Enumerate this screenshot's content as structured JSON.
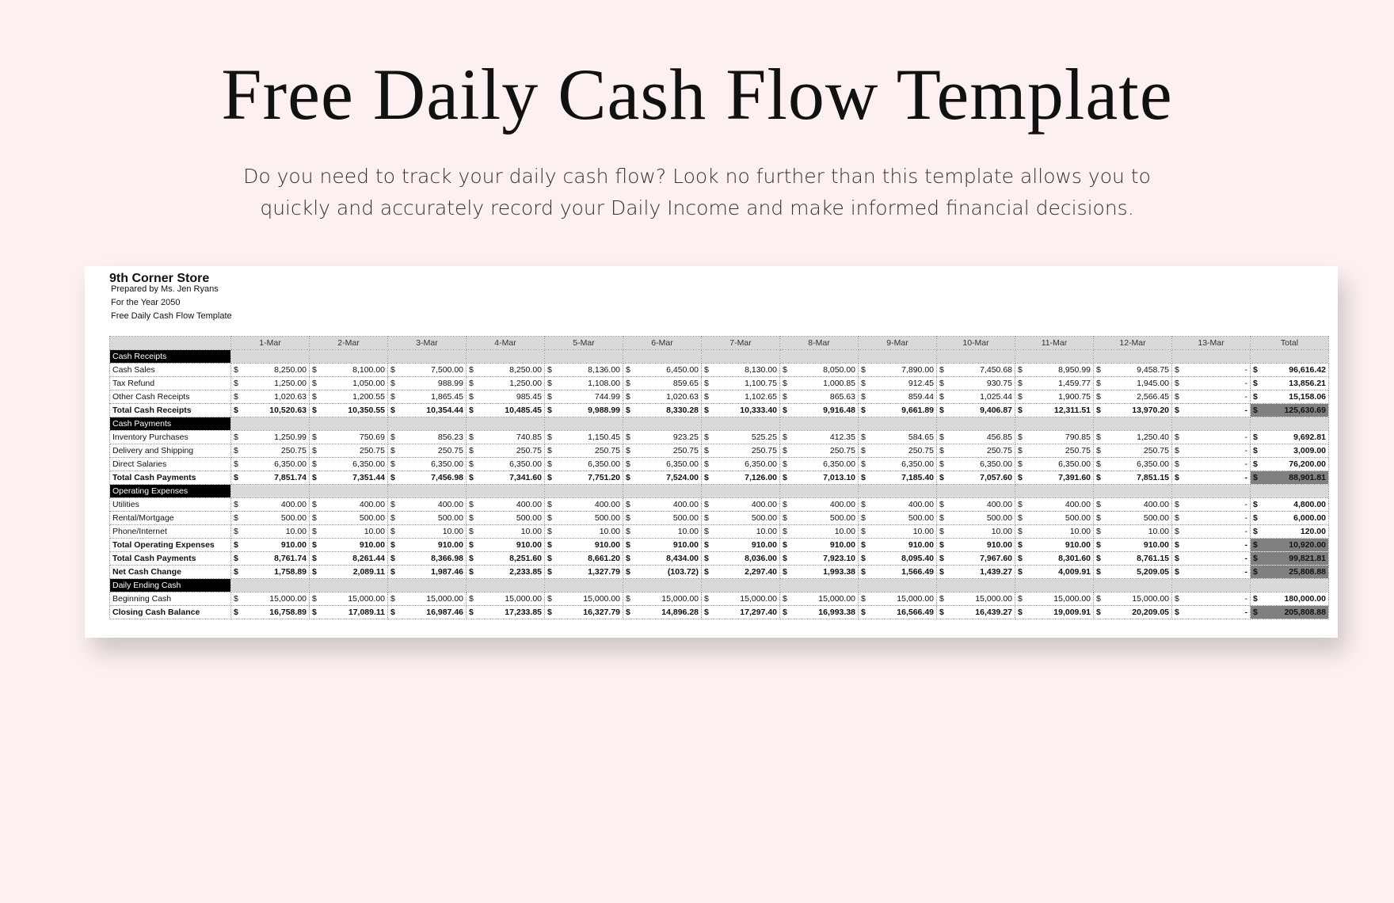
{
  "header": {
    "title": "Free Daily Cash Flow Template",
    "subtitle_lines": [
      "Do you need to track your daily cash flow? Look no further than this template allows you to",
      "quickly and accurately record your Daily Income and make informed financial decisions."
    ]
  },
  "sheet": {
    "store": "9th Corner Store",
    "info": [
      "Prepared by Ms. Jen Ryans",
      "For the Year 2050",
      "Free Daily Cash Flow Template"
    ]
  },
  "table": {
    "currency": "$",
    "columns": [
      "1-Mar",
      "2-Mar",
      "3-Mar",
      "4-Mar",
      "5-Mar",
      "6-Mar",
      "7-Mar",
      "8-Mar",
      "9-Mar",
      "10-Mar",
      "11-Mar",
      "12-Mar",
      "13-Mar",
      "Total"
    ],
    "rows": [
      {
        "section": "Cash Receipts"
      },
      {
        "label": "Cash Sales",
        "cells": [
          "8,250.00",
          "8,100.00",
          "7,500.00",
          "8,250.00",
          "8,136.00",
          "6,450.00",
          "8,130.00",
          "8,050.00",
          "7,890.00",
          "7,450.68",
          "8,950.99",
          "9,458.75",
          "-",
          "96,616.42"
        ]
      },
      {
        "label": "Tax Refund",
        "cells": [
          "1,250.00",
          "1,050.00",
          "988.99",
          "1,250.00",
          "1,108.00",
          "859.65",
          "1,100.75",
          "1,000.85",
          "912.45",
          "930.75",
          "1,459.77",
          "1,945.00",
          "-",
          "13,856.21"
        ]
      },
      {
        "label": "Other Cash Receipts",
        "cells": [
          "1,020.63",
          "1,200.55",
          "1,865.45",
          "985.45",
          "744.99",
          "1,020.63",
          "1,102.65",
          "865.63",
          "859.44",
          "1,025.44",
          "1,900.75",
          "2,566.45",
          "-",
          "15,158.06"
        ]
      },
      {
        "label": "Total Cash Receipts",
        "bold": true,
        "cells": [
          "10,520.63",
          "10,350.55",
          "10,354.44",
          "10,485.45",
          "9,988.99",
          "8,330.28",
          "10,333.40",
          "9,916.48",
          "9,661.89",
          "9,406.87",
          "12,311.51",
          "13,970.20",
          "-",
          "125,630.69"
        ]
      },
      {
        "section": "Cash Payments"
      },
      {
        "label": "Inventory Purchases",
        "cells": [
          "1,250.99",
          "750.69",
          "856.23",
          "740.85",
          "1,150.45",
          "923.25",
          "525.25",
          "412.35",
          "584.65",
          "456.85",
          "790.85",
          "1,250.40",
          "-",
          "9,692.81"
        ]
      },
      {
        "label": "Delivery and Shipping",
        "cells": [
          "250.75",
          "250.75",
          "250.75",
          "250.75",
          "250.75",
          "250.75",
          "250.75",
          "250.75",
          "250.75",
          "250.75",
          "250.75",
          "250.75",
          "-",
          "3,009.00"
        ]
      },
      {
        "label": "Direct Salaries",
        "cells": [
          "6,350.00",
          "6,350.00",
          "6,350.00",
          "6,350.00",
          "6,350.00",
          "6,350.00",
          "6,350.00",
          "6,350.00",
          "6,350.00",
          "6,350.00",
          "6,350.00",
          "6,350.00",
          "-",
          "76,200.00"
        ]
      },
      {
        "label": "Total Cash Payments",
        "bold": true,
        "cells": [
          "7,851.74",
          "7,351.44",
          "7,456.98",
          "7,341.60",
          "7,751.20",
          "7,524.00",
          "7,126.00",
          "7,013.10",
          "7,185.40",
          "7,057.60",
          "7,391.60",
          "7,851.15",
          "-",
          "88,901.81"
        ]
      },
      {
        "section": "Operating Expenses"
      },
      {
        "label": "Utilities",
        "cells": [
          "400.00",
          "400.00",
          "400.00",
          "400.00",
          "400.00",
          "400.00",
          "400.00",
          "400.00",
          "400.00",
          "400.00",
          "400.00",
          "400.00",
          "-",
          "4,800.00"
        ]
      },
      {
        "label": "Rental/Mortgage",
        "cells": [
          "500.00",
          "500.00",
          "500.00",
          "500.00",
          "500.00",
          "500.00",
          "500.00",
          "500.00",
          "500.00",
          "500.00",
          "500.00",
          "500.00",
          "-",
          "6,000.00"
        ]
      },
      {
        "label": "Phone/Internet",
        "cells": [
          "10.00",
          "10.00",
          "10.00",
          "10.00",
          "10.00",
          "10.00",
          "10.00",
          "10.00",
          "10.00",
          "10.00",
          "10.00",
          "10.00",
          "-",
          "120.00"
        ]
      },
      {
        "label": "Total Operating Expenses",
        "bold": true,
        "cells": [
          "910.00",
          "910.00",
          "910.00",
          "910.00",
          "910.00",
          "910.00",
          "910.00",
          "910.00",
          "910.00",
          "910.00",
          "910.00",
          "910.00",
          "-",
          "10,920.00"
        ]
      },
      {
        "label": "Total Cash Payments",
        "bold": true,
        "cells": [
          "8,761.74",
          "8,261.44",
          "8,366.98",
          "8,251.60",
          "8,661.20",
          "8,434.00",
          "8,036.00",
          "7,923.10",
          "8,095.40",
          "7,967.60",
          "8,301.60",
          "8,761.15",
          "-",
          "99,821.81"
        ]
      },
      {
        "label": "Net Cash Change",
        "bold": true,
        "cells": [
          "1,758.89",
          "2,089.11",
          "1,987.46",
          "2,233.85",
          "1,327.79",
          "(103.72)",
          "2,297.40",
          "1,993.38",
          "1,566.49",
          "1,439.27",
          "4,009.91",
          "5,209.05",
          "-",
          "25,808.88"
        ]
      },
      {
        "section": "Daily Ending Cash"
      },
      {
        "label": "Beginning Cash",
        "cells": [
          "15,000.00",
          "15,000.00",
          "15,000.00",
          "15,000.00",
          "15,000.00",
          "15,000.00",
          "15,000.00",
          "15,000.00",
          "15,000.00",
          "15,000.00",
          "15,000.00",
          "15,000.00",
          "-",
          "180,000.00"
        ]
      },
      {
        "label": "Closing Cash Balance",
        "bold": true,
        "cells": [
          "16,758.89",
          "17,089.11",
          "16,987.46",
          "17,233.85",
          "16,327.79",
          "14,896.28",
          "17,297.40",
          "16,993.38",
          "16,566.49",
          "16,439.27",
          "19,009.91",
          "20,209.05",
          "-",
          "205,808.88"
        ]
      }
    ]
  }
}
